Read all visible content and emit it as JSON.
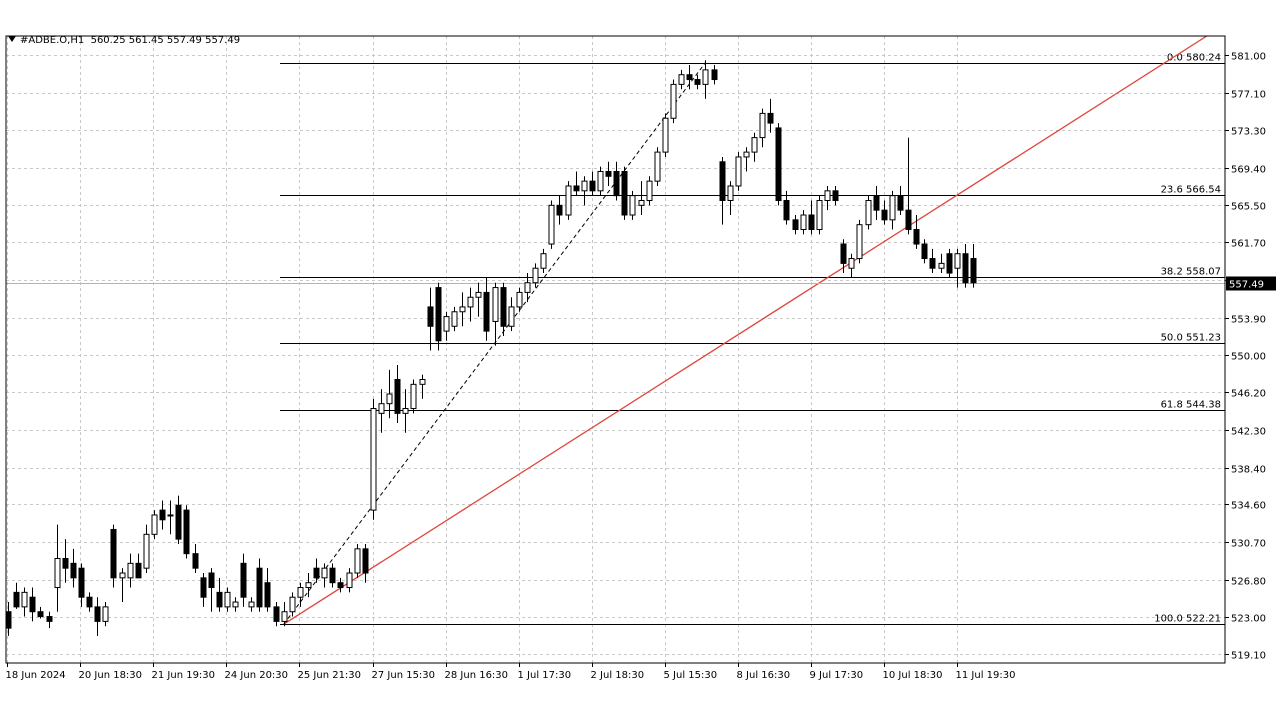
{
  "header": {
    "symbol": "#ADBE.O,H1",
    "ohlc": "560.25 561.45 557.49 557.49"
  },
  "colors": {
    "grid": "#c8c8c8",
    "trendline": "#e0443a",
    "fib": "#000000",
    "candle_up_fill": "#ffffff",
    "candle_down_fill": "#000000",
    "price_tag_bg": "#000000"
  },
  "chart_data": {
    "type": "candlestick",
    "ylim": [
      518.2,
      583.0
    ],
    "yticks": [
      "581.00",
      "577.10",
      "573.30",
      "569.40",
      "565.50",
      "561.70",
      "557.80",
      "553.90",
      "550.00",
      "546.20",
      "542.30",
      "538.40",
      "534.60",
      "530.70",
      "526.80",
      "523.00",
      "519.10"
    ],
    "xticks": [
      "18 Jun 2024",
      "20 Jun 18:30",
      "21 Jun 19:30",
      "24 Jun 20:30",
      "25 Jun 21:30",
      "27 Jun 15:30",
      "28 Jun 16:30",
      "1 Jul 17:30",
      "2 Jul 18:30",
      "5 Jul 15:30",
      "8 Jul 16:30",
      "9 Jul 17:30",
      "10 Jul 18:30",
      "11 Jul 19:30"
    ],
    "last_price": "557.49",
    "fib_levels": [
      {
        "ratio": "0.0",
        "price": "580.24"
      },
      {
        "ratio": "23.6",
        "price": "566.54"
      },
      {
        "ratio": "38.2",
        "price": "558.07"
      },
      {
        "ratio": "50.0",
        "price": "551.23"
      },
      {
        "ratio": "61.8",
        "price": "544.38"
      },
      {
        "ratio": "100.0",
        "price": "522.21"
      }
    ],
    "candles": [
      [
        523.5,
        524.5,
        521.0,
        521.8
      ],
      [
        525.5,
        526.5,
        523.8,
        524.0
      ],
      [
        524.0,
        526.0,
        523.0,
        525.5
      ],
      [
        525.0,
        526.0,
        522.5,
        523.5
      ],
      [
        523.5,
        524.0,
        522.8,
        523.0
      ],
      [
        523.0,
        523.5,
        521.8,
        522.5
      ],
      [
        526.0,
        532.5,
        523.5,
        529.0
      ],
      [
        529.0,
        531.0,
        526.5,
        528.0
      ],
      [
        528.5,
        530.0,
        526.0,
        527.0
      ],
      [
        528.0,
        528.5,
        524.0,
        525.0
      ],
      [
        525.0,
        525.5,
        523.5,
        524.0
      ],
      [
        524.0,
        525.0,
        521.0,
        522.5
      ],
      [
        522.5,
        524.5,
        522.0,
        524.0
      ],
      [
        532.0,
        532.5,
        526.0,
        527.0
      ],
      [
        527.0,
        528.0,
        524.5,
        527.5
      ],
      [
        527.0,
        529.5,
        526.0,
        528.5
      ],
      [
        528.5,
        529.5,
        527.0,
        527.0
      ],
      [
        528.0,
        532.5,
        527.5,
        531.5
      ],
      [
        531.5,
        534.0,
        531.0,
        533.5
      ],
      [
        534.0,
        535.0,
        532.0,
        533.0
      ],
      [
        533.5,
        535.0,
        531.5,
        533.5
      ],
      [
        534.5,
        535.5,
        530.5,
        531.0
      ],
      [
        534.0,
        534.5,
        529.0,
        529.5
      ],
      [
        529.5,
        530.5,
        527.5,
        528.0
      ],
      [
        527.0,
        527.5,
        524.0,
        525.0
      ],
      [
        527.5,
        528.0,
        523.5,
        526.0
      ],
      [
        525.5,
        527.0,
        523.5,
        524.0
      ],
      [
        524.0,
        526.0,
        523.5,
        525.5
      ],
      [
        524.0,
        525.0,
        523.5,
        524.5
      ],
      [
        528.5,
        529.5,
        524.0,
        525.0
      ],
      [
        524.0,
        525.0,
        523.5,
        524.5
      ],
      [
        528.0,
        529.0,
        523.5,
        524.0
      ],
      [
        526.5,
        528.0,
        523.5,
        524.0
      ],
      [
        524.0,
        524.5,
        522.0,
        522.5
      ],
      [
        522.5,
        524.5,
        522.0,
        523.5
      ],
      [
        523.5,
        525.5,
        523.0,
        525.0
      ],
      [
        525.0,
        526.5,
        524.0,
        526.0
      ],
      [
        526.0,
        527.5,
        525.0,
        526.5
      ],
      [
        528.0,
        529.0,
        526.5,
        527.0
      ],
      [
        527.0,
        528.5,
        526.0,
        528.0
      ],
      [
        528.0,
        528.5,
        526.0,
        526.5
      ],
      [
        526.5,
        527.0,
        525.5,
        526.0
      ],
      [
        526.0,
        528.0,
        525.5,
        527.5
      ],
      [
        527.5,
        530.5,
        527.0,
        530.0
      ],
      [
        530.0,
        530.5,
        526.5,
        527.5
      ],
      [
        534.0,
        545.5,
        533.0,
        544.5
      ],
      [
        544.0,
        546.5,
        542.0,
        545.0
      ],
      [
        545.0,
        548.5,
        543.5,
        546.0
      ],
      [
        547.5,
        549.0,
        543.0,
        544.0
      ],
      [
        544.0,
        546.5,
        542.0,
        544.5
      ],
      [
        544.5,
        547.5,
        544.0,
        547.0
      ],
      [
        547.0,
        548.0,
        545.5,
        547.5
      ],
      [
        555.0,
        557.0,
        550.5,
        553.0
      ],
      [
        557.0,
        557.5,
        550.5,
        551.5
      ],
      [
        552.5,
        554.5,
        551.5,
        554.0
      ],
      [
        553.0,
        555.0,
        552.5,
        554.5
      ],
      [
        554.5,
        556.5,
        553.0,
        555.0
      ],
      [
        555.0,
        557.0,
        553.5,
        556.0
      ],
      [
        556.0,
        557.5,
        554.0,
        556.5
      ],
      [
        556.5,
        558.0,
        551.5,
        552.5
      ],
      [
        553.5,
        557.5,
        551.0,
        557.0
      ],
      [
        557.0,
        557.5,
        552.0,
        553.0
      ],
      [
        553.0,
        556.0,
        552.5,
        555.0
      ],
      [
        555.0,
        557.0,
        554.5,
        556.5
      ],
      [
        556.5,
        558.5,
        555.5,
        557.5
      ],
      [
        557.5,
        559.5,
        557.0,
        559.0
      ],
      [
        559.0,
        561.0,
        558.5,
        560.5
      ],
      [
        561.5,
        566.0,
        561.0,
        565.5
      ],
      [
        565.5,
        566.5,
        563.5,
        564.5
      ],
      [
        564.5,
        568.0,
        564.0,
        567.5
      ],
      [
        567.5,
        569.0,
        566.5,
        567.0
      ],
      [
        567.0,
        568.5,
        565.5,
        568.0
      ],
      [
        568.0,
        569.0,
        566.5,
        567.0
      ],
      [
        567.0,
        569.5,
        566.5,
        569.0
      ],
      [
        569.0,
        570.0,
        567.5,
        568.5
      ],
      [
        569.0,
        570.0,
        566.0,
        566.5
      ],
      [
        569.0,
        569.5,
        564.0,
        564.5
      ],
      [
        564.5,
        567.0,
        564.0,
        566.5
      ],
      [
        565.5,
        568.0,
        564.5,
        566.0
      ],
      [
        566.0,
        568.5,
        565.5,
        568.0
      ],
      [
        568.0,
        571.5,
        567.5,
        571.0
      ],
      [
        571.0,
        575.0,
        570.5,
        574.5
      ],
      [
        574.5,
        578.5,
        574.0,
        578.0
      ],
      [
        578.0,
        579.5,
        577.5,
        579.0
      ],
      [
        579.0,
        580.0,
        577.5,
        578.5
      ],
      [
        578.5,
        579.0,
        577.5,
        578.0
      ],
      [
        578.0,
        580.5,
        576.5,
        579.5
      ],
      [
        579.5,
        580.0,
        578.0,
        578.5
      ],
      [
        570.0,
        570.5,
        563.5,
        566.0
      ],
      [
        566.0,
        568.0,
        564.5,
        567.5
      ],
      [
        567.5,
        571.0,
        567.0,
        570.5
      ],
      [
        570.5,
        571.5,
        569.0,
        571.0
      ],
      [
        571.0,
        573.0,
        570.0,
        572.5
      ],
      [
        572.5,
        575.5,
        571.5,
        575.0
      ],
      [
        575.0,
        576.5,
        573.0,
        574.0
      ],
      [
        573.5,
        574.0,
        565.5,
        566.0
      ],
      [
        566.0,
        567.0,
        563.5,
        564.0
      ],
      [
        564.0,
        564.5,
        562.5,
        563.0
      ],
      [
        563.0,
        565.0,
        562.5,
        564.5
      ],
      [
        564.5,
        566.0,
        562.5,
        563.0
      ],
      [
        563.0,
        566.5,
        562.5,
        566.0
      ],
      [
        566.0,
        567.5,
        565.0,
        567.0
      ],
      [
        567.0,
        567.5,
        565.5,
        566.0
      ],
      [
        561.5,
        562.0,
        558.5,
        559.5
      ],
      [
        559.0,
        560.5,
        558.0,
        560.0
      ],
      [
        560.0,
        564.0,
        559.5,
        563.5
      ],
      [
        563.5,
        566.5,
        563.0,
        566.0
      ],
      [
        566.5,
        567.5,
        564.0,
        565.0
      ],
      [
        565.0,
        566.0,
        563.5,
        564.0
      ],
      [
        564.0,
        567.0,
        563.0,
        566.5
      ],
      [
        566.5,
        567.5,
        564.5,
        565.0
      ],
      [
        565.0,
        572.5,
        562.5,
        563.0
      ],
      [
        563.0,
        564.5,
        561.0,
        561.5
      ],
      [
        561.5,
        562.0,
        559.5,
        560.0
      ],
      [
        560.0,
        561.0,
        558.5,
        559.0
      ],
      [
        559.0,
        560.5,
        558.5,
        559.5
      ],
      [
        560.5,
        561.0,
        558.0,
        558.5
      ],
      [
        559.0,
        561.0,
        557.0,
        560.5
      ],
      [
        560.5,
        561.5,
        557.0,
        557.5
      ],
      [
        560.0,
        561.5,
        557.0,
        557.5
      ]
    ]
  }
}
